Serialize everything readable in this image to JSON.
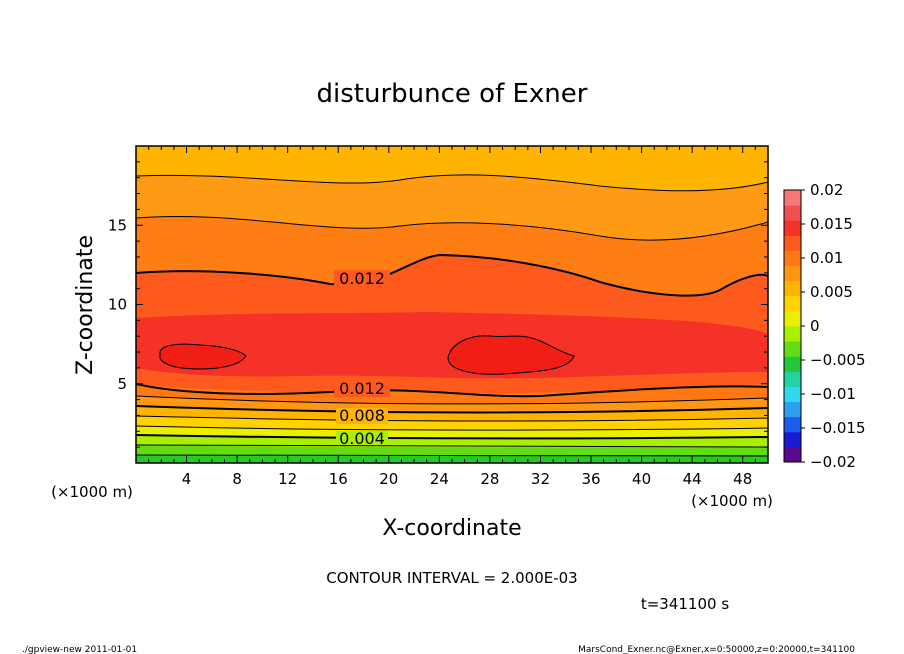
{
  "chart_data": {
    "type": "heatmap",
    "title": "disturbunce of Exner",
    "xlabel": "X-coordinate",
    "ylabel": "Z-coordinate",
    "x_unit_left": "(×1000 m)",
    "x_unit_right": "(×1000 m)",
    "xlim": [
      0,
      50
    ],
    "ylim": [
      0,
      20
    ],
    "x_ticks": [
      4,
      8,
      12,
      16,
      20,
      24,
      28,
      32,
      36,
      40,
      44,
      48
    ],
    "y_ticks": [
      5,
      10,
      15
    ],
    "colorbar": {
      "min": -0.02,
      "max": 0.02,
      "ticks": [
        "0.02",
        "0.015",
        "0.01",
        "0.005",
        "0",
        "−0.005",
        "−0.01",
        "−0.015",
        "−0.02"
      ],
      "colors": [
        "#5a0a8c",
        "#1a1ad0",
        "#1e5cf0",
        "#2fa0f0",
        "#30d8f0",
        "#22d4a0",
        "#22c83c",
        "#64dc14",
        "#a8f000",
        "#e8f000",
        "#ffd200",
        "#ffb400",
        "#ff9614",
        "#ff7814",
        "#ff5a1e",
        "#f53228",
        "#f05050",
        "#f87878"
      ]
    },
    "contour_labels": [
      "0.012",
      "0.012",
      "0.008",
      "0.004"
    ],
    "contour_interval": "CONTOUR INTERVAL = 2.000E-03",
    "time_label": "t=341100 s"
  },
  "footer": {
    "left": "./gpview-new   2011-01-01",
    "right": "MarsCond_Exner.nc@Exner,x=0:50000,z=0:20000,t=341100"
  }
}
